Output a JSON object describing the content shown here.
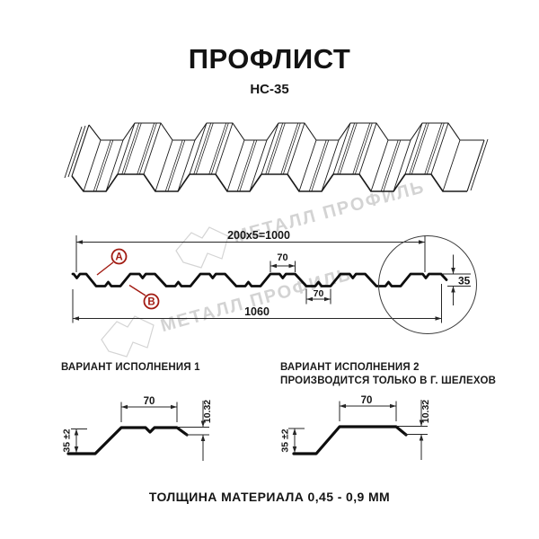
{
  "page": {
    "title": "ПРОФЛИСТ",
    "subtitle": "НС-35",
    "footer": "ТОЛЩИНА МАТЕРИАЛА 0,45 - 0,9 ММ"
  },
  "watermark": {
    "text": "МЕТАЛЛ ПРОФИЛЬ",
    "logo": "metall-profil-pentagon",
    "color": "#c9c9c9"
  },
  "section": {
    "dim_working_width": "200x5=1000",
    "dim_top_flange": "70",
    "dim_bottom_flange": "70",
    "dim_total_width": "1060",
    "dim_height": "35",
    "callout_a": "A",
    "callout_b": "B",
    "accent_color": "#a21b12"
  },
  "variants": {
    "v1": {
      "title": "ВАРИАНТ ИСПОЛНЕНИЯ 1",
      "dim_top": "70",
      "dim_height": "35 ±2",
      "dim_lip": "10.32"
    },
    "v2": {
      "title": "ВАРИАНТ ИСПОЛНЕНИЯ 2",
      "subtitle": "ПРОИЗВОДИТСЯ ТОЛЬКО В Г. ШЕЛЕХОВ",
      "dim_top": "70",
      "dim_height": "35 ±2",
      "dim_lip": "10.32"
    }
  }
}
